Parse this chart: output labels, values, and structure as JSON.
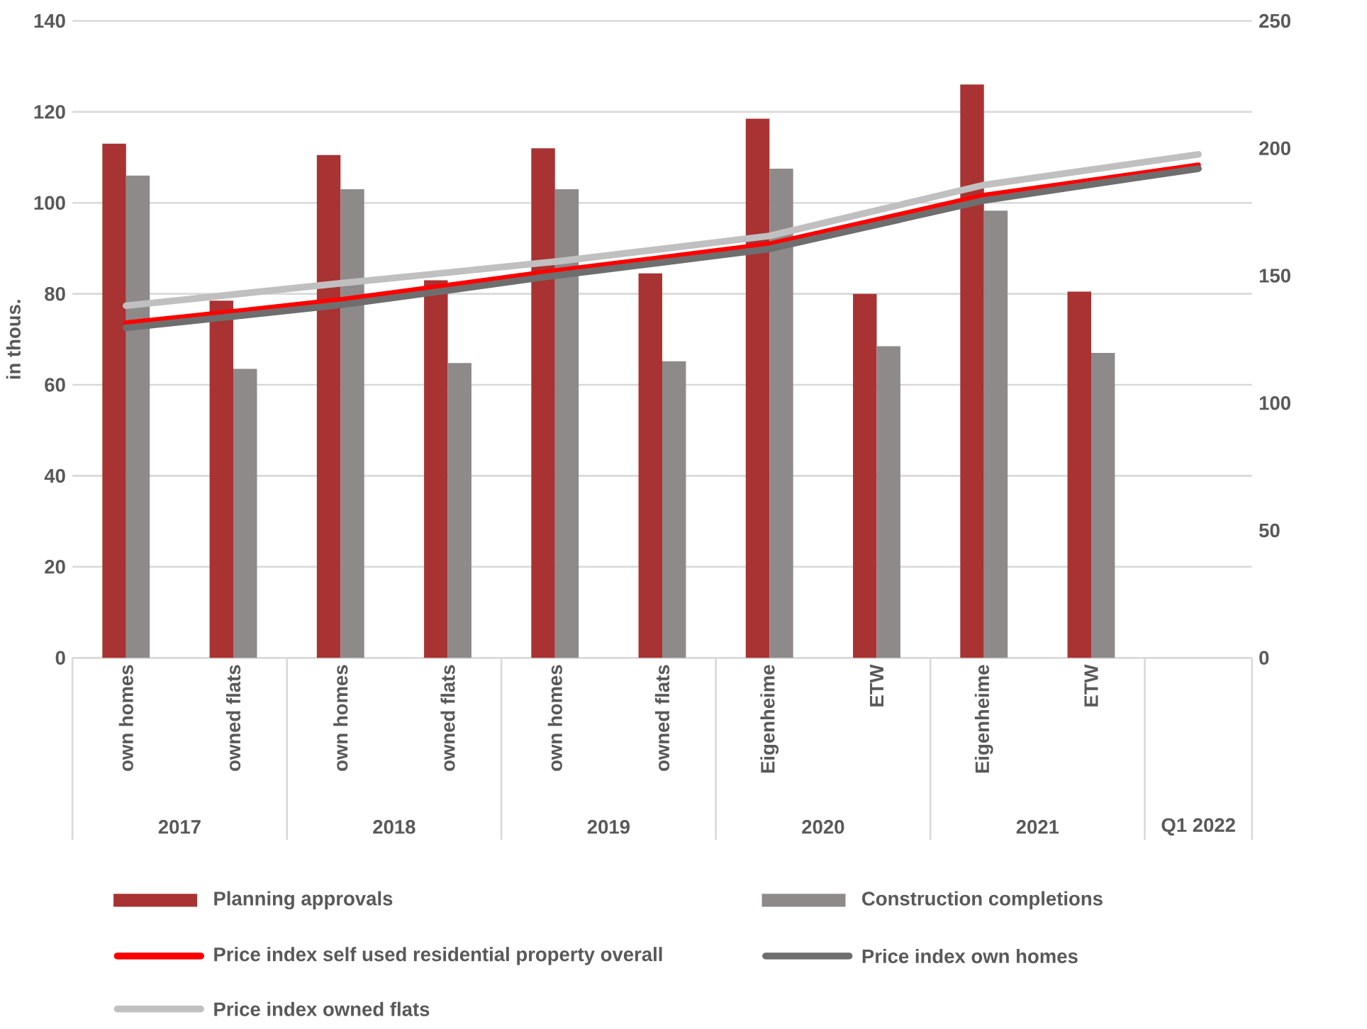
{
  "chart_data": {
    "type": "bar",
    "categories": [
      "own homes",
      "owned flats",
      "own homes",
      "owned flats",
      "own homes",
      "owned flats",
      "Eigenheime",
      "ETW",
      "Eigenheime",
      "ETW",
      null
    ],
    "series": [
      {
        "name": "Planning approvals",
        "color": "#a93232",
        "values": [
          113,
          78.5,
          110.5,
          83,
          112,
          84.5,
          118.5,
          80,
          126,
          80.5,
          null
        ]
      },
      {
        "name": "Construction completions",
        "color": "#8e8a8a",
        "values": [
          106,
          63.5,
          103,
          64.8,
          103,
          65.2,
          107.5,
          68.5,
          98.3,
          67,
          null
        ]
      },
      {
        "name": "Price index self used residential property overall",
        "type": "line",
        "axis": "y2",
        "color": "#ff0000",
        "values": [
          131.5,
          136,
          140.6,
          146.3,
          152,
          157.2,
          162.5,
          172,
          181.6,
          187.5,
          193.5
        ]
      },
      {
        "name": "Price index own homes",
        "type": "line",
        "axis": "y2",
        "color": "#6e6e6e",
        "values": [
          129.5,
          134,
          138.5,
          144.2,
          150,
          155.2,
          160.5,
          170,
          179.5,
          185.8,
          192
        ]
      },
      {
        "name": "Price index owned flats",
        "type": "line",
        "axis": "y2",
        "color": "#c0c0c0",
        "values": [
          138.2,
          142.6,
          147,
          151.2,
          155.5,
          160.5,
          165.6,
          175.6,
          185.6,
          191.6,
          197.6
        ]
      }
    ],
    "ylabel": "in thous.",
    "ylim": [
      0,
      140
    ],
    "yticks": [
      0,
      20,
      40,
      60,
      80,
      100,
      120,
      140
    ],
    "y2lim": [
      0,
      250
    ],
    "y2ticks": [
      0,
      50,
      100,
      150,
      200,
      250
    ],
    "grid": "y",
    "legend": "bottom",
    "marker": "none",
    "annotations": [
      "2017",
      "2018",
      "2019",
      "2020",
      "2021",
      "Q1 2022"
    ]
  }
}
